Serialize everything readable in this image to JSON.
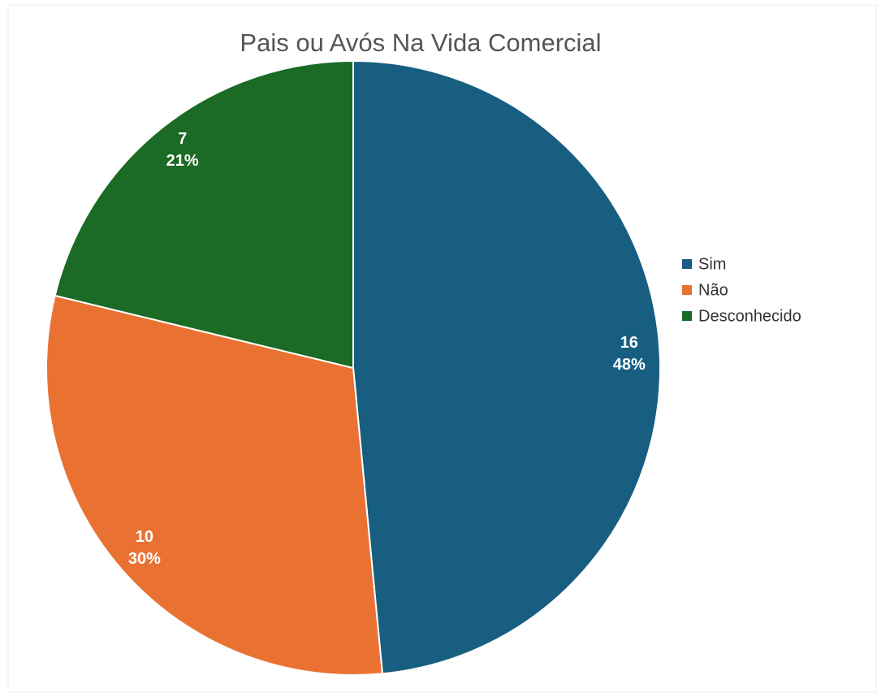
{
  "chart_data": {
    "type": "pie",
    "title": "Pais ou Avós Na Vida Comercial",
    "categories": [
      "Sim",
      "Não",
      "Desconhecido"
    ],
    "values": [
      16,
      10,
      7
    ],
    "percent_labels": [
      "48%",
      "30%",
      "21%"
    ],
    "colors": [
      "#175e81",
      "#e97233",
      "#1b6a25"
    ],
    "legend": "right"
  }
}
